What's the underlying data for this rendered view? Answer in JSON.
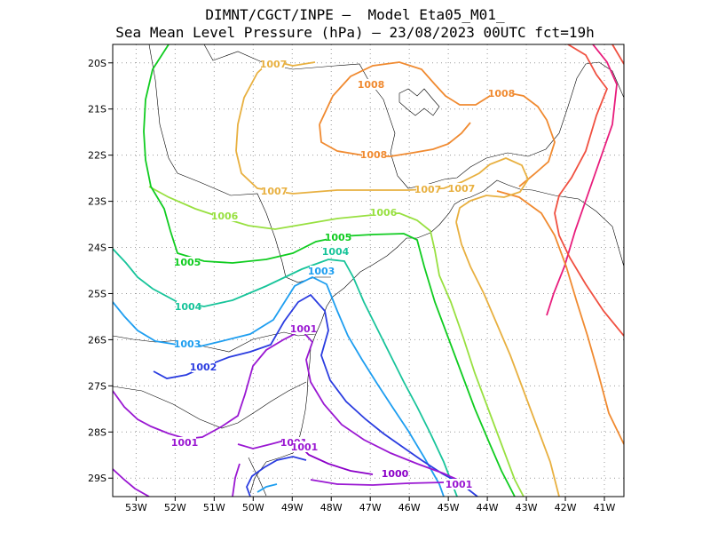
{
  "title_line1": "DIMNT/CGCT/INPE –  Model Eta05_M01_",
  "title_line2": "Sea Mean Level Pressure (hPa) – 23/08/2023 00UTC fct=19h",
  "map": {
    "lon_ticks": [
      "53W",
      "52W",
      "51W",
      "50W",
      "49W",
      "48W",
      "47W",
      "46W",
      "45W",
      "44W",
      "43W",
      "42W",
      "41W"
    ],
    "lat_ticks": [
      "20S",
      "21S",
      "22S",
      "23S",
      "24S",
      "25S",
      "26S",
      "27S",
      "28S",
      "29S"
    ],
    "lon_range": [
      -53.6,
      -40.5
    ],
    "lat_range": [
      -29.4,
      -19.6
    ],
    "grid": "dotted",
    "contour_levels": [
      1000,
      1001,
      1002,
      1003,
      1004,
      1005,
      1006,
      1007,
      1008
    ],
    "contour_colors": {
      "1000": "#8b00c8",
      "1001": "#9a18d2",
      "1002": "#2a3ce0",
      "1003": "#1e9ef0",
      "1004": "#18c49a",
      "1005": "#10cc20",
      "1006": "#98e040",
      "1007": "#e8b040",
      "1008": "#f08a30",
      "1009": "#f05040",
      "1010": "#e81c7c"
    },
    "contour_labels": [
      {
        "text": "1007"
      },
      {
        "text": "1008"
      },
      {
        "text": "1008"
      },
      {
        "text": "1008"
      },
      {
        "text": "1007"
      },
      {
        "text": "1007"
      },
      {
        "text": "1007"
      },
      {
        "text": "1006"
      },
      {
        "text": "1006"
      },
      {
        "text": "1005"
      },
      {
        "text": "1005"
      },
      {
        "text": "1004"
      },
      {
        "text": "1004"
      },
      {
        "text": "1003"
      },
      {
        "text": "1003"
      },
      {
        "text": "1002"
      },
      {
        "text": "1001"
      },
      {
        "text": "1001"
      },
      {
        "text": "1001"
      },
      {
        "text": "1001"
      },
      {
        "text": "1000"
      },
      {
        "text": "1001"
      }
    ]
  }
}
